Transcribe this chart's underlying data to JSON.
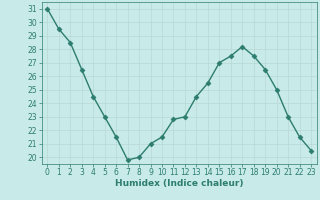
{
  "x": [
    0,
    1,
    2,
    3,
    4,
    5,
    6,
    7,
    8,
    9,
    10,
    11,
    12,
    13,
    14,
    15,
    16,
    17,
    18,
    19,
    20,
    21,
    22,
    23
  ],
  "y": [
    31,
    29.5,
    28.5,
    26.5,
    24.5,
    23,
    21.5,
    19.8,
    20,
    21,
    21.5,
    22.8,
    23,
    24.5,
    25.5,
    27,
    27.5,
    28.2,
    27.5,
    26.5,
    25,
    23,
    21.5,
    20.5
  ],
  "line_color": "#2d7d6f",
  "marker": "D",
  "marker_size": 2.5,
  "bg_color": "#c8eae8",
  "grid_color": "#b8d8d4",
  "xlabel": "Humidex (Indice chaleur)",
  "xlim": [
    -0.5,
    23.5
  ],
  "ylim": [
    19.5,
    31.5
  ],
  "yticks": [
    20,
    21,
    22,
    23,
    24,
    25,
    26,
    27,
    28,
    29,
    30,
    31
  ],
  "xticks": [
    0,
    1,
    2,
    3,
    4,
    5,
    6,
    7,
    8,
    9,
    10,
    11,
    12,
    13,
    14,
    15,
    16,
    17,
    18,
    19,
    20,
    21,
    22,
    23
  ],
  "tick_color": "#2d7d6f",
  "tick_fontsize": 5.5,
  "xlabel_fontsize": 6.5,
  "line_width": 1.0
}
